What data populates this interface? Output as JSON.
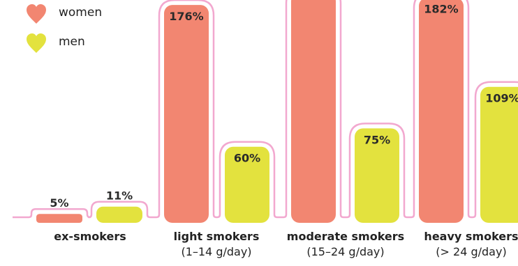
{
  "chart_data": {
    "type": "bar",
    "title": "",
    "xlabel": "",
    "ylabel": "",
    "legend_position": "top-left",
    "categories": [
      {
        "name": "ex-smokers",
        "sub": ""
      },
      {
        "name": "light smokers",
        "sub": "(1–14 g/day)"
      },
      {
        "name": "moderate smokers",
        "sub": "(15–24 g/day)"
      },
      {
        "name": "heavy smokers",
        "sub": "(> 24 g/day)"
      }
    ],
    "series": [
      {
        "name": "women",
        "color": "#f28671",
        "values": [
          5,
          176,
          null,
          182
        ],
        "labels": [
          "5%",
          "176%",
          "",
          "182%"
        ]
      },
      {
        "name": "men",
        "color": "#e3e23e",
        "values": [
          11,
          60,
          75,
          109
        ],
        "labels": [
          "11%",
          "60%",
          "75%",
          "109%"
        ]
      }
    ],
    "outline_color": "#f2a8cf",
    "legend_icon": "heart-icon"
  }
}
